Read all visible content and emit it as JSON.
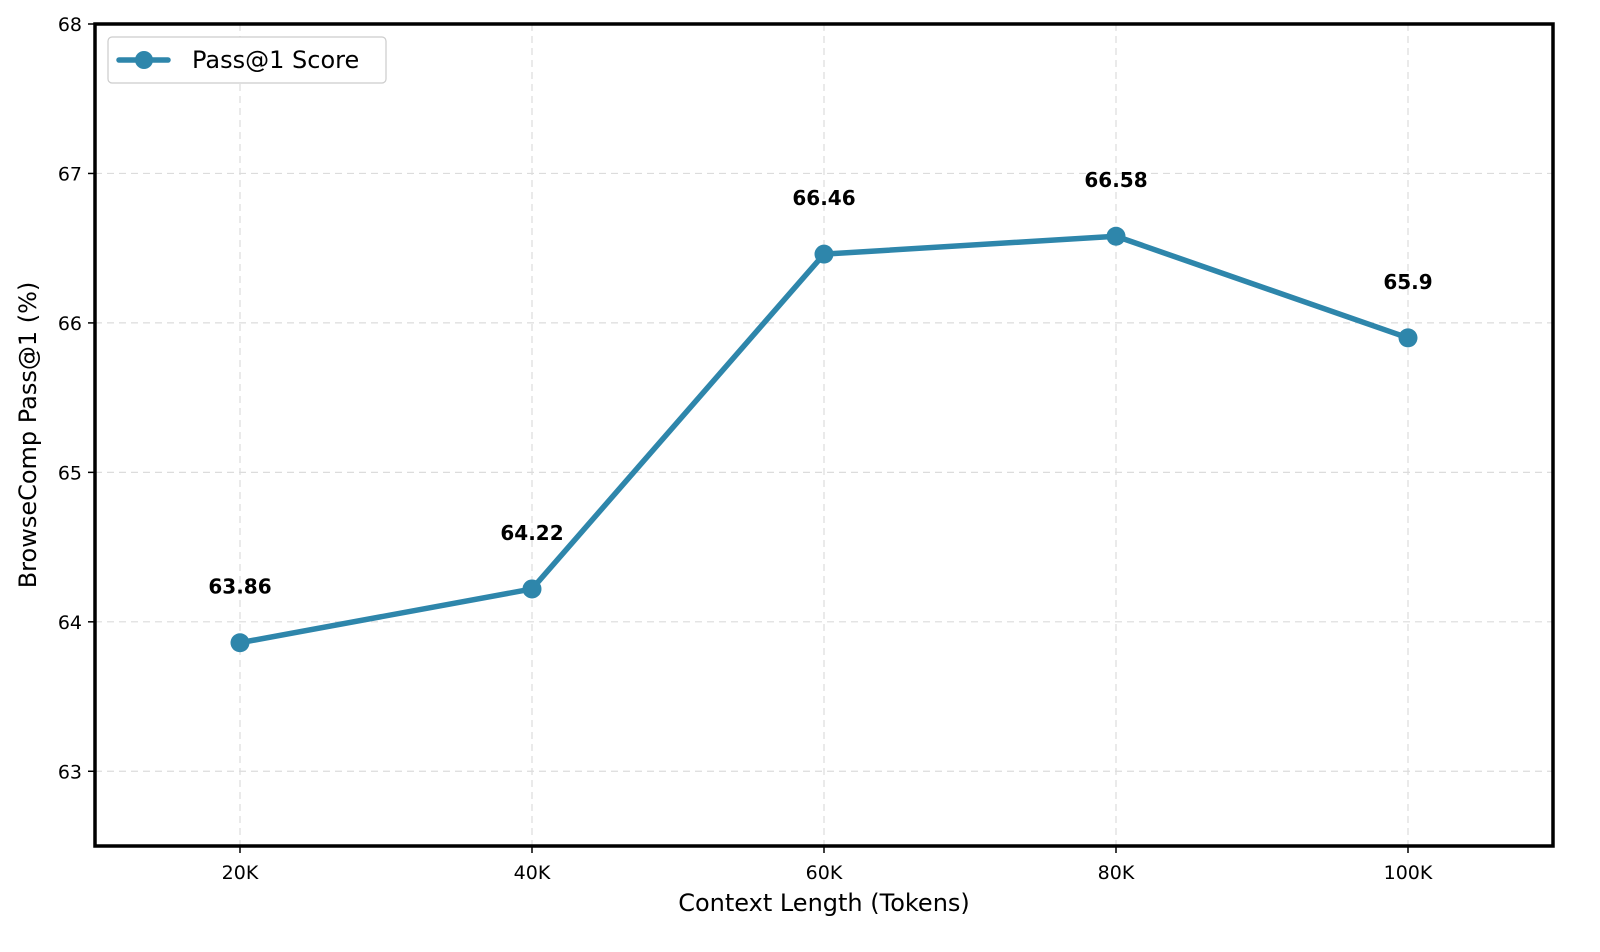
{
  "chart_data": {
    "type": "line",
    "categories": [
      "20K",
      "40K",
      "60K",
      "80K",
      "100K"
    ],
    "series": [
      {
        "name": "Pass@1 Score",
        "values": [
          63.86,
          64.22,
          66.46,
          66.58,
          65.9
        ],
        "data_labels": [
          "63.86",
          "64.22",
          "66.46",
          "66.58",
          "65.9"
        ],
        "color": "#2e86ab"
      }
    ],
    "xlabel": "Context Length (Tokens)",
    "ylabel": "BrowseComp Pass@1 (%)",
    "ylim": [
      62.5,
      68
    ],
    "yticks": [
      63,
      64,
      65,
      66,
      67,
      68
    ],
    "ytick_labels": [
      "63",
      "64",
      "65",
      "66",
      "67",
      "68"
    ],
    "grid": true,
    "legend_position": "top-left"
  }
}
